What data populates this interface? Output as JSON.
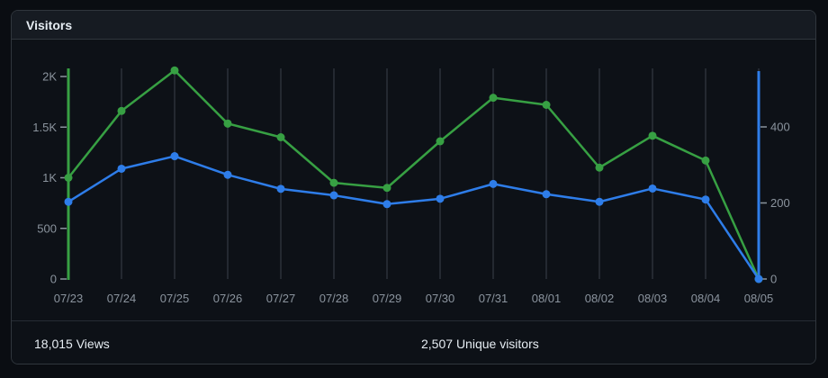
{
  "card": {
    "title": "Visitors",
    "stats": [
      {
        "value": "18,015",
        "label": "Views"
      },
      {
        "value": "2,507",
        "label": "Unique visitors"
      }
    ]
  },
  "colors": {
    "page_bg": "#0a0d12",
    "card_bg": "#0d1117",
    "header_bg": "#161b22",
    "border": "#30363d",
    "gridline": "#3a414b",
    "axis_label_text": "#8b949e",
    "title_text": "#e6edf3",
    "views_green": "#37a043",
    "unique_blue": "#2e7de9"
  },
  "chart_data": {
    "type": "line",
    "title": "Visitors",
    "x": [
      "07/23",
      "07/24",
      "07/25",
      "07/26",
      "07/27",
      "07/28",
      "07/29",
      "07/30",
      "07/31",
      "08/01",
      "08/02",
      "08/03",
      "08/04",
      "08/05"
    ],
    "series": [
      {
        "name": "Views",
        "axis": "left",
        "color": "#37a043",
        "values": [
          1000,
          1660,
          2060,
          1535,
          1400,
          950,
          900,
          1360,
          1790,
          1720,
          1100,
          1415,
          1170,
          0
        ]
      },
      {
        "name": "Unique visitors",
        "axis": "right",
        "color": "#2e7de9",
        "values": [
          203,
          290,
          323,
          274,
          237,
          220,
          197,
          211,
          250,
          223,
          203,
          238,
          209,
          0
        ]
      }
    ],
    "left_axis": {
      "side": "left",
      "color": "#37a043",
      "ticks": [
        0,
        500,
        1000,
        1500,
        2000
      ],
      "tick_labels": [
        "0",
        "500",
        "1K",
        "1.5K",
        "2K"
      ],
      "range": [
        0,
        2080
      ]
    },
    "right_axis": {
      "side": "right",
      "color": "#2e7de9",
      "ticks": [
        0,
        200,
        400
      ],
      "tick_labels": [
        "0",
        "200",
        "400"
      ],
      "range": [
        0,
        548
      ]
    },
    "grid": "vertical",
    "legend": "none"
  }
}
